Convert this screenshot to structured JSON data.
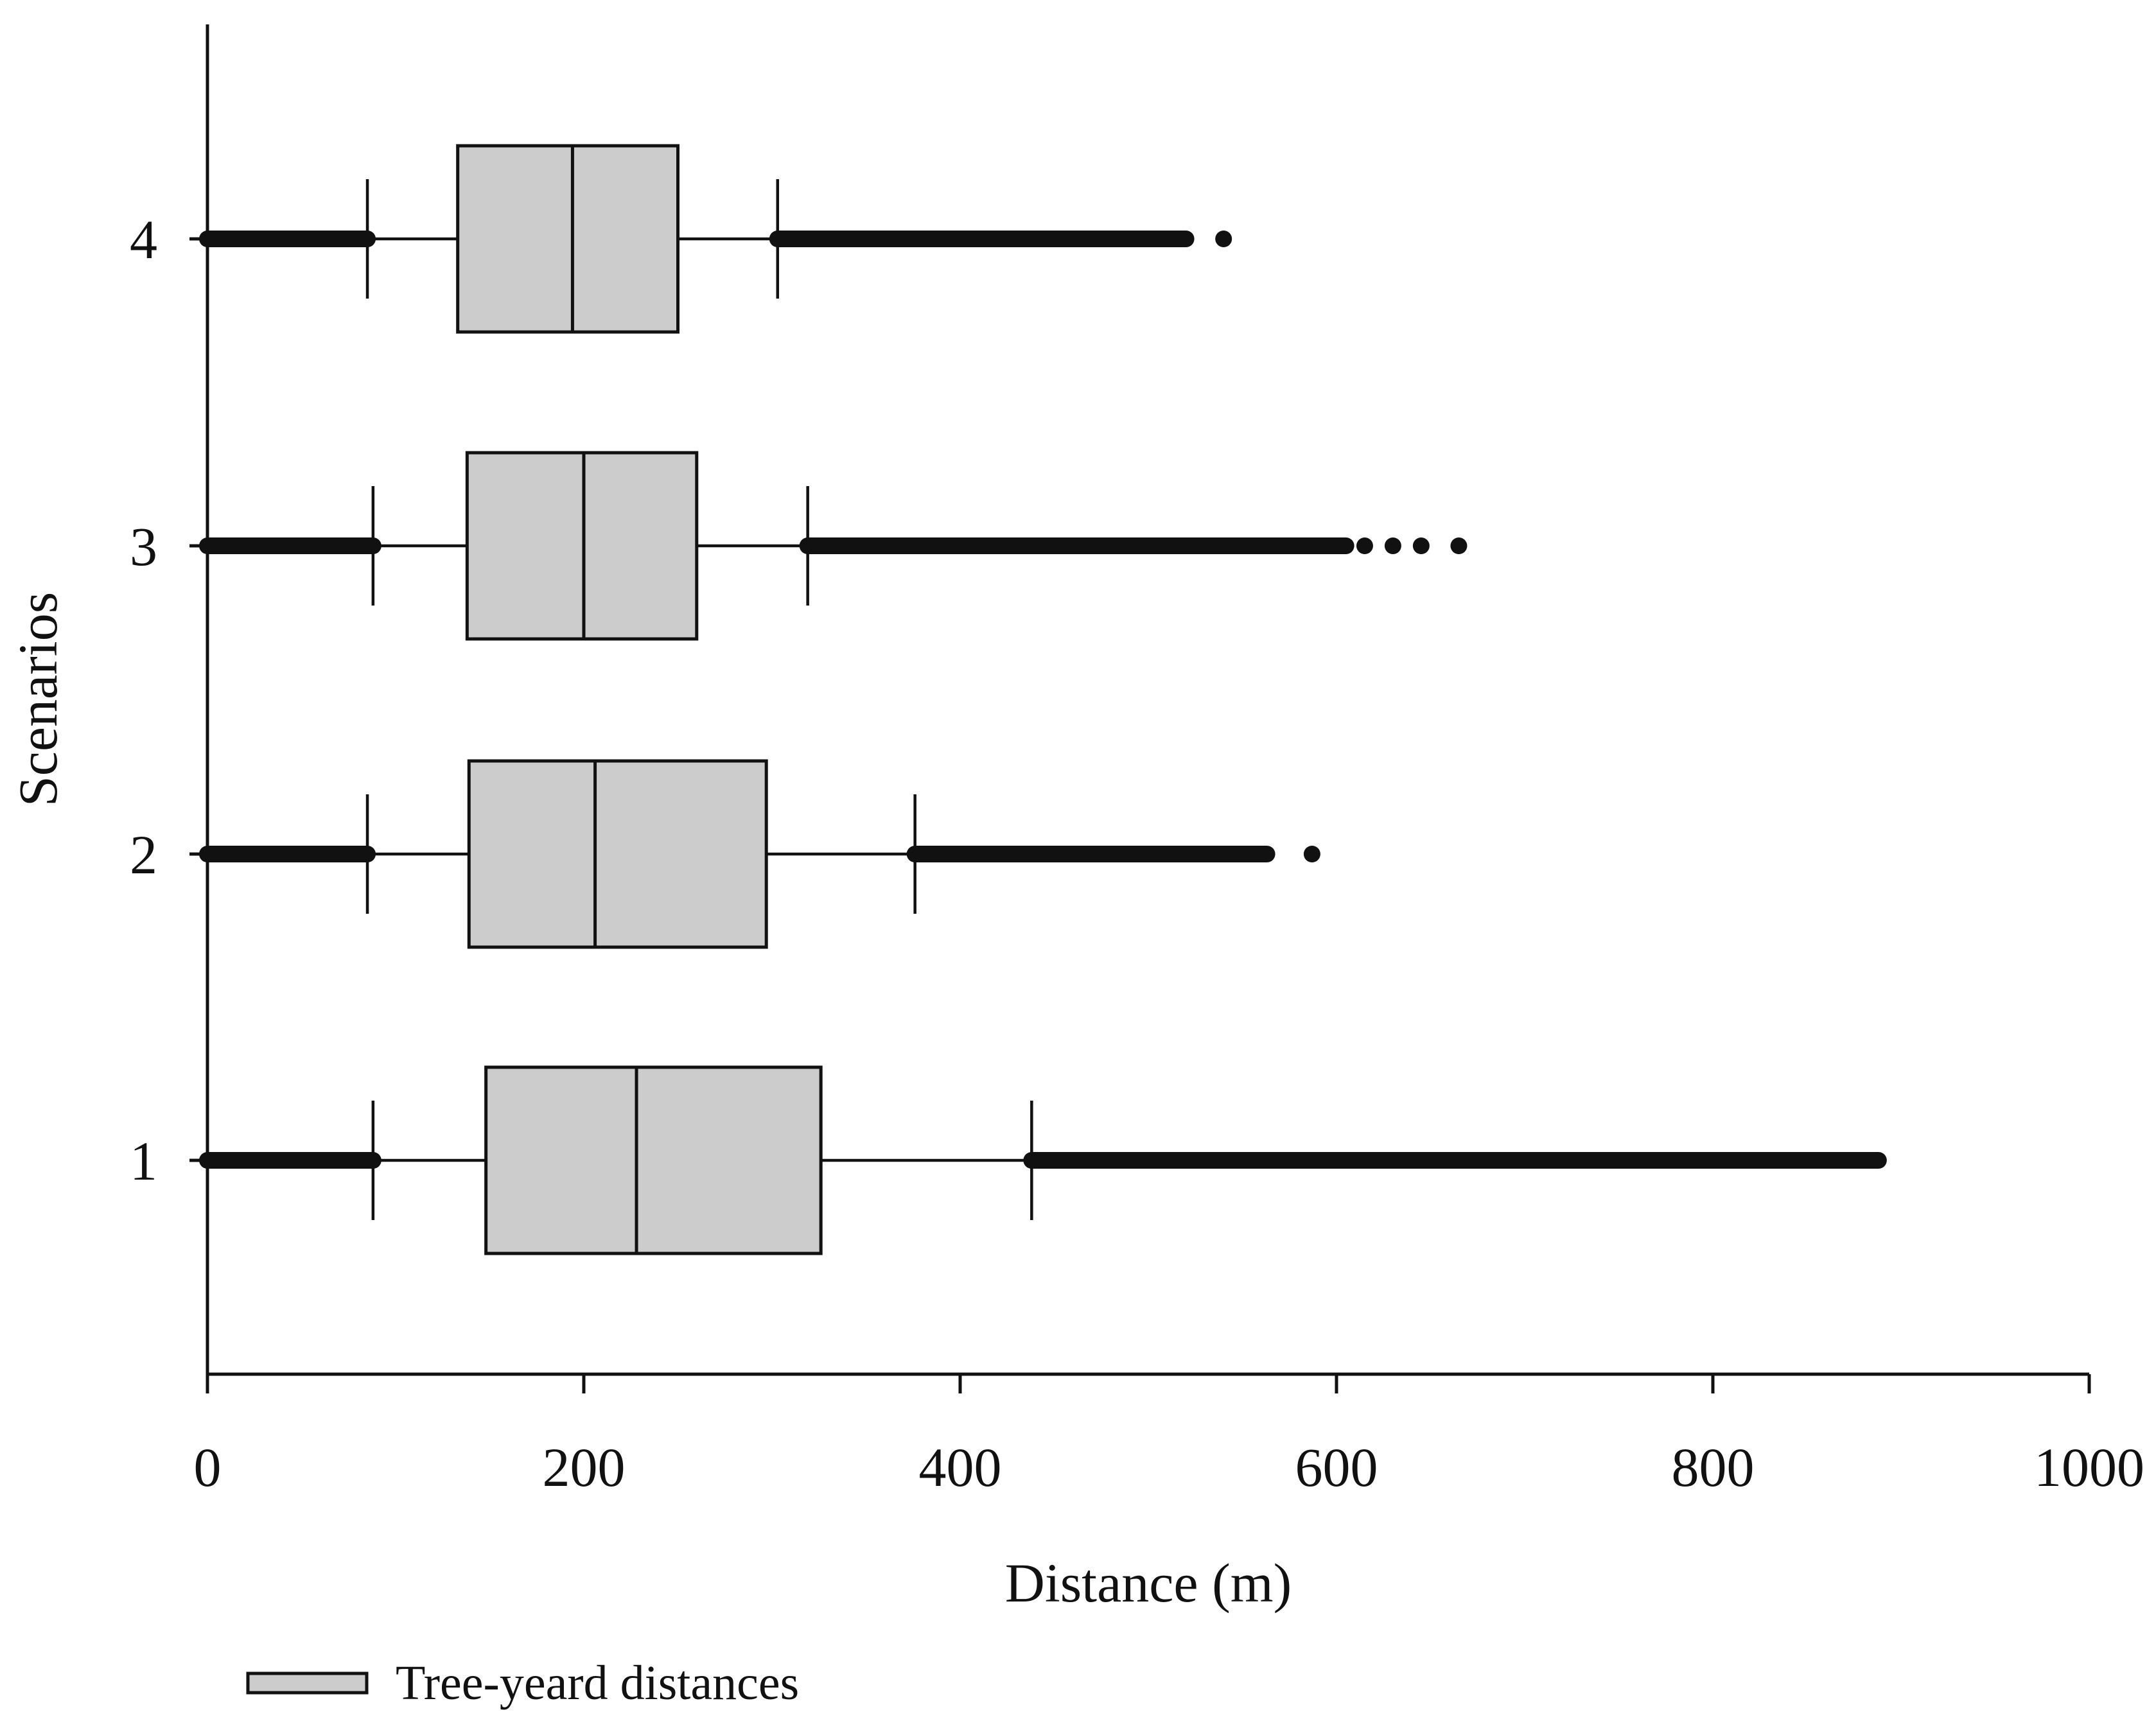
{
  "chart_data": {
    "type": "boxplot",
    "orientation": "horizontal",
    "xlabel": "Distance (m)",
    "ylabel": "Scenarios",
    "xlim": [
      0,
      1000
    ],
    "x_ticks": [
      "0",
      "200",
      "400",
      "600",
      "800",
      "1000"
    ],
    "categories": [
      "1",
      "2",
      "3",
      "4"
    ],
    "grid": false,
    "legend": {
      "label": "Tree-yeard distances",
      "position": "bottom-left"
    },
    "colors": {
      "box_fill": "#cccccc",
      "line": "#111111",
      "point": "#111111"
    },
    "series": [
      {
        "category": "1",
        "whisker_low": 88,
        "q1": 148,
        "median": 228,
        "q3": 326,
        "whisker_high": 438,
        "outliers_low": [
          0,
          88
        ],
        "outliers_high_range": [
          438,
          888
        ],
        "outliers_high_isolated": []
      },
      {
        "category": "2",
        "whisker_low": 85,
        "q1": 139,
        "median": 206,
        "q3": 297,
        "whisker_high": 376,
        "outliers_low": [
          0,
          85
        ],
        "outliers_high_range": [
          376,
          563
        ],
        "outliers_high_isolated": [
          587
        ]
      },
      {
        "category": "3",
        "whisker_low": 88,
        "q1": 138,
        "median": 200,
        "q3": 260,
        "whisker_high": 319,
        "outliers_low": [
          0,
          88
        ],
        "outliers_high_range": [
          319,
          605
        ],
        "outliers_high_isolated": [
          615,
          630,
          645,
          665
        ]
      },
      {
        "category": "4",
        "whisker_low": 85,
        "q1": 133,
        "median": 194,
        "q3": 250,
        "whisker_high": 303,
        "outliers_low": [
          0,
          85
        ],
        "outliers_high_range": [
          303,
          520
        ],
        "outliers_high_isolated": [
          540
        ]
      }
    ]
  }
}
